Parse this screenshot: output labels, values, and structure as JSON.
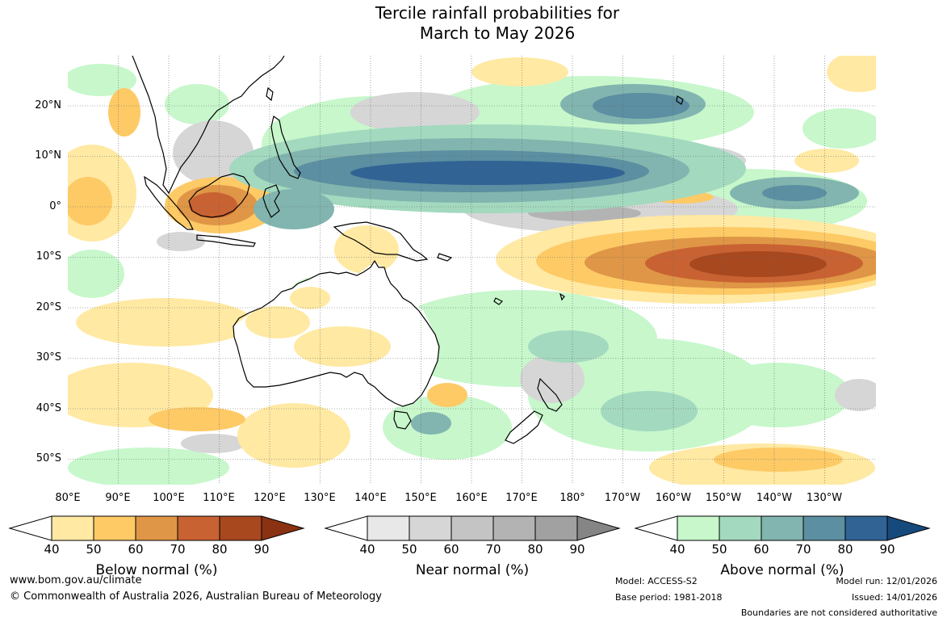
{
  "title": {
    "line1": "Tercile rainfall probabilities for",
    "line2": "March to May 2026"
  },
  "map": {
    "latitude_labels": [
      "20°N",
      "10°N",
      "0°",
      "10°S",
      "20°S",
      "30°S",
      "40°S",
      "50°S"
    ],
    "longitude_labels": [
      "80°E",
      "90°E",
      "100°E",
      "110°E",
      "120°E",
      "130°E",
      "140°E",
      "150°E",
      "160°E",
      "170°E",
      "180°",
      "170°W",
      "160°W",
      "150°W",
      "140°W",
      "130°W"
    ]
  },
  "legends": [
    {
      "label": "Below normal (%)",
      "ticks": [
        "40",
        "50",
        "60",
        "70",
        "80",
        "90"
      ],
      "colors": [
        "#ffffff",
        "#ffe9a3",
        "#fdca66",
        "#df9646",
        "#c96232",
        "#a7481f",
        "#8a3212"
      ]
    },
    {
      "label": "Near normal (%)",
      "ticks": [
        "40",
        "50",
        "60",
        "70",
        "80",
        "90"
      ],
      "colors": [
        "#ffffff",
        "#e8e8e8",
        "#d6d6d6",
        "#c4c4c4",
        "#b3b3b3",
        "#a1a1a1",
        "#858585"
      ]
    },
    {
      "label": "Above normal (%)",
      "ticks": [
        "40",
        "50",
        "60",
        "70",
        "80",
        "90"
      ],
      "colors": [
        "#ffffff",
        "#c7f7cb",
        "#a3d9bf",
        "#82b5af",
        "#5b8fa1",
        "#316395",
        "#174a7c"
      ]
    }
  ],
  "footer": {
    "website": "www.bom.gov.au/climate",
    "copyright": "© Commonwealth of Australia 2026, Australian Bureau of Meteorology",
    "model": "Model: ACCESS-S2",
    "base_period": "Base period: 1981-2018",
    "model_run": "Model run: 12/01/2026",
    "issued": "Issued: 14/01/2026",
    "disclaimer": "Boundaries are not considered authoritative"
  }
}
